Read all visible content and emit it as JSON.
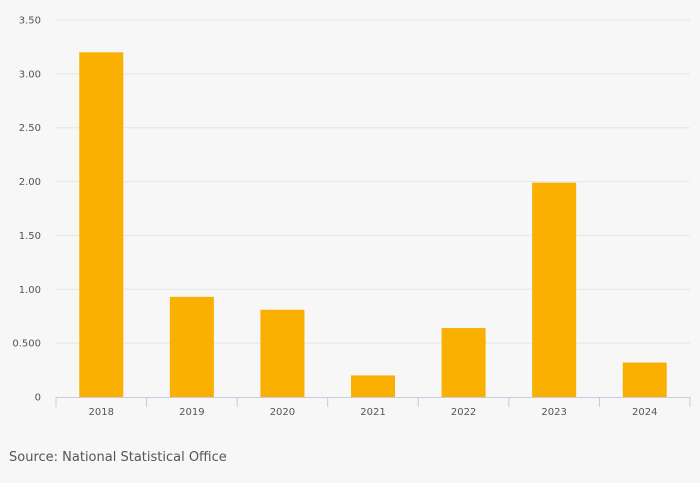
{
  "source_text": "Source: National Statistical Office",
  "colors": {
    "bar": "#f9b000",
    "grid": "#e6e6e6",
    "axis": "#c8cbe0",
    "background": "#f7f7f7"
  },
  "chart_data": {
    "type": "bar",
    "categories": [
      "2018",
      "2019",
      "2020",
      "2021",
      "2022",
      "2023",
      "2024"
    ],
    "values": [
      3.2,
      0.93,
      0.81,
      0.2,
      0.64,
      1.99,
      0.32
    ],
    "ylim": [
      0,
      3.5
    ],
    "yticks": [
      0,
      0.5,
      1.0,
      1.5,
      2.0,
      2.5,
      3.0,
      3.5
    ],
    "ytick_labels": [
      "0",
      "0.500",
      "1.00",
      "1.50",
      "2.00",
      "2.50",
      "3.00",
      "3.50"
    ],
    "title": "",
    "xlabel": "",
    "ylabel": "",
    "grid": true,
    "legend": "none"
  }
}
